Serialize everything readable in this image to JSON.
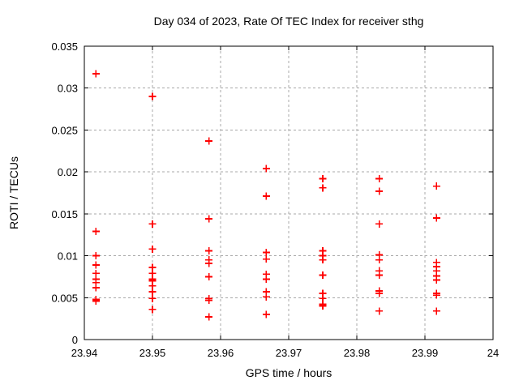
{
  "chart_data": {
    "type": "scatter",
    "title": "Day 034 of 2023, Rate Of TEC Index for receiver sthg",
    "xlabel": "GPS time / hours",
    "ylabel": "ROTI / TECUs",
    "xlim": [
      23.94,
      24
    ],
    "ylim": [
      0,
      0.035
    ],
    "xticks": [
      23.94,
      23.95,
      23.96,
      23.97,
      23.98,
      23.99,
      24
    ],
    "yticks": [
      0,
      0.005,
      0.01,
      0.015,
      0.02,
      0.025,
      0.03,
      0.035
    ],
    "grid": true,
    "legend": "none",
    "marker": "plus",
    "marker_color": "#ff0000",
    "grid_color": "#a8a8a8",
    "axis_color": "#000000",
    "background": "#ffffff",
    "series": [
      {
        "name": "ROTI",
        "points": [
          [
            23.9417,
            0.0317
          ],
          [
            23.9417,
            0.0129
          ],
          [
            23.9417,
            0.01
          ],
          [
            23.9417,
            0.0089
          ],
          [
            23.9417,
            0.0079
          ],
          [
            23.9417,
            0.0072
          ],
          [
            23.9417,
            0.0068
          ],
          [
            23.9417,
            0.0062
          ],
          [
            23.9417,
            0.0048
          ],
          [
            23.9417,
            0.0046
          ],
          [
            23.95,
            0.029
          ],
          [
            23.95,
            0.0138
          ],
          [
            23.95,
            0.0108
          ],
          [
            23.95,
            0.0086
          ],
          [
            23.95,
            0.0079
          ],
          [
            23.95,
            0.0072
          ],
          [
            23.95,
            0.007
          ],
          [
            23.95,
            0.0064
          ],
          [
            23.95,
            0.0057
          ],
          [
            23.95,
            0.0049
          ],
          [
            23.95,
            0.0036
          ],
          [
            23.9583,
            0.0237
          ],
          [
            23.9583,
            0.0144
          ],
          [
            23.9583,
            0.0106
          ],
          [
            23.9583,
            0.0095
          ],
          [
            23.9583,
            0.0091
          ],
          [
            23.9583,
            0.0075
          ],
          [
            23.9583,
            0.0049
          ],
          [
            23.9583,
            0.0047
          ],
          [
            23.9583,
            0.0027
          ],
          [
            23.9667,
            0.0204
          ],
          [
            23.9667,
            0.0171
          ],
          [
            23.9667,
            0.0104
          ],
          [
            23.9667,
            0.0096
          ],
          [
            23.9667,
            0.0078
          ],
          [
            23.9667,
            0.0072
          ],
          [
            23.9667,
            0.0057
          ],
          [
            23.9667,
            0.0051
          ],
          [
            23.9667,
            0.003
          ],
          [
            23.975,
            0.0192
          ],
          [
            23.975,
            0.0181
          ],
          [
            23.975,
            0.0106
          ],
          [
            23.975,
            0.01
          ],
          [
            23.975,
            0.0095
          ],
          [
            23.975,
            0.0077
          ],
          [
            23.975,
            0.0055
          ],
          [
            23.975,
            0.0049
          ],
          [
            23.975,
            0.0042
          ],
          [
            23.975,
            0.004
          ],
          [
            23.9833,
            0.0192
          ],
          [
            23.9833,
            0.0177
          ],
          [
            23.9833,
            0.0138
          ],
          [
            23.9833,
            0.0101
          ],
          [
            23.9833,
            0.0095
          ],
          [
            23.9833,
            0.0082
          ],
          [
            23.9833,
            0.0077
          ],
          [
            23.9833,
            0.0058
          ],
          [
            23.9833,
            0.0055
          ],
          [
            23.9833,
            0.0034
          ],
          [
            23.9917,
            0.0183
          ],
          [
            23.9917,
            0.0145
          ],
          [
            23.9917,
            0.0092
          ],
          [
            23.9917,
            0.0087
          ],
          [
            23.9917,
            0.0082
          ],
          [
            23.9917,
            0.0076
          ],
          [
            23.9917,
            0.0071
          ],
          [
            23.9917,
            0.0055
          ],
          [
            23.9917,
            0.0053
          ],
          [
            23.9917,
            0.0034
          ]
        ]
      }
    ]
  }
}
